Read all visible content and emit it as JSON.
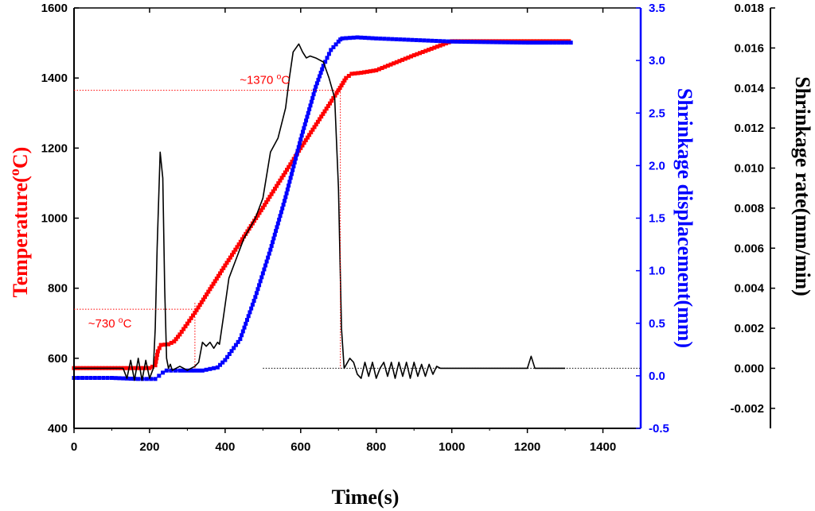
{
  "chart_data": {
    "type": "line",
    "title": "",
    "xlabel": "Time(s)",
    "xlim": [
      0,
      1500
    ],
    "xticks": [
      0,
      200,
      400,
      600,
      800,
      1000,
      1200,
      1400
    ],
    "y_left": {
      "label_parts": [
        "Temperature(",
        "o",
        "C)"
      ],
      "color": "#ff0000",
      "lim": [
        400,
        1600
      ],
      "ticks": [
        400,
        600,
        800,
        1000,
        1200,
        1400,
        1600
      ]
    },
    "y_right1": {
      "label": "Shrinkage displacement(mm)",
      "color": "#0000ff",
      "lim": [
        -0.5,
        3.5
      ],
      "ticks": [
        "-0.5",
        "0.0",
        "0.5",
        "1.0",
        "1.5",
        "2.0",
        "2.5",
        "3.0",
        "3.5"
      ]
    },
    "y_right2": {
      "label": "Shrinkage rate(mm/min)",
      "color": "#000000",
      "lim": [
        -0.003,
        0.018
      ],
      "ticks": [
        "-0.002",
        "0.000",
        "0.002",
        "0.004",
        "0.006",
        "0.008",
        "0.010",
        "0.012",
        "0.014",
        "0.016",
        "0.018"
      ]
    },
    "annotations": [
      {
        "name": "annotation-730",
        "parts": [
          "~730 ",
          "o",
          "C"
        ],
        "anchor": [
          130,
          740
        ],
        "x_end": 320
      },
      {
        "name": "annotation-1370",
        "parts": [
          "~1370 ",
          "o",
          "C"
        ],
        "anchor": [
          420,
          1365
        ],
        "x_end": 705
      }
    ],
    "series": [
      {
        "name": "Temperature",
        "axis": "left",
        "color": "#ff0000",
        "x": [
          0,
          100,
          200,
          215,
          222,
          230,
          250,
          265,
          280,
          320,
          400,
          500,
          600,
          700,
          720,
          735,
          760,
          800,
          900,
          1000,
          1050,
          1100,
          1200,
          1310
        ],
        "y": [
          572,
          572,
          572,
          580,
          620,
          638,
          640,
          648,
          668,
          730,
          865,
          1030,
          1200,
          1365,
          1400,
          1412,
          1415,
          1422,
          1465,
          1505,
          1505,
          1505,
          1505,
          1505
        ]
      },
      {
        "name": "Shrinkage displacement",
        "axis": "right1",
        "color": "#0000ff",
        "x": [
          0,
          100,
          170,
          215,
          235,
          245,
          280,
          300,
          340,
          380,
          400,
          440,
          480,
          520,
          560,
          600,
          640,
          660,
          680,
          700,
          705,
          710,
          750,
          800,
          1000,
          1200,
          1315
        ],
        "y": [
          -0.02,
          -0.02,
          -0.03,
          -0.03,
          0.03,
          0.05,
          0.05,
          0.05,
          0.05,
          0.08,
          0.15,
          0.35,
          0.75,
          1.2,
          1.7,
          2.25,
          2.75,
          2.95,
          3.1,
          3.18,
          3.2,
          3.21,
          3.22,
          3.21,
          3.18,
          3.17,
          3.17
        ]
      },
      {
        "name": "Shrinkage rate",
        "axis": "right2",
        "color": "#000000",
        "x": [
          0,
          130,
          140,
          150,
          160,
          170,
          180,
          190,
          200,
          210,
          215,
          220,
          228,
          235,
          240,
          245,
          250,
          255,
          260,
          280,
          300,
          320,
          330,
          340,
          350,
          360,
          370,
          380,
          385,
          395,
          410,
          430,
          450,
          480,
          500,
          520,
          540,
          560,
          570,
          580,
          595,
          605,
          615,
          625,
          640,
          660,
          675,
          690,
          700,
          708,
          715,
          730,
          740,
          750,
          760,
          770,
          780,
          790,
          800,
          810,
          820,
          830,
          840,
          850,
          860,
          870,
          880,
          890,
          900,
          910,
          920,
          930,
          940,
          950,
          960,
          970,
          980,
          990,
          1000,
          1100,
          1200,
          1210,
          1220,
          1300
        ],
        "y": [
          0.0,
          0.0,
          -0.0005,
          0.0004,
          -0.0006,
          0.0005,
          -0.0006,
          0.0004,
          -0.0005,
          0.0,
          0.002,
          0.006,
          0.0108,
          0.0095,
          0.004,
          0.0005,
          0.0,
          0.0002,
          -0.0001,
          0.0001,
          -0.0001,
          0.0001,
          0.0003,
          0.0013,
          0.0011,
          0.0013,
          0.001,
          0.0013,
          0.0012,
          0.0025,
          0.0045,
          0.0055,
          0.0065,
          0.0075,
          0.0085,
          0.0108,
          0.0115,
          0.013,
          0.0145,
          0.0158,
          0.0162,
          0.0158,
          0.0155,
          0.0156,
          0.0155,
          0.0153,
          0.0145,
          0.0135,
          0.009,
          0.002,
          0.0,
          0.0005,
          0.0003,
          -0.0003,
          -0.0005,
          0.0003,
          -0.0004,
          0.0003,
          -0.0005,
          0.0,
          0.0003,
          -0.0004,
          0.0003,
          -0.0005,
          0.0003,
          -0.0004,
          0.0003,
          -0.0005,
          0.0003,
          -0.0004,
          0.0002,
          -0.0004,
          0.0002,
          -0.0003,
          0.0001,
          0.0,
          0.0,
          0.0,
          0.0,
          0.0,
          0.0,
          0.0006,
          0.0,
          0.0
        ]
      }
    ]
  }
}
